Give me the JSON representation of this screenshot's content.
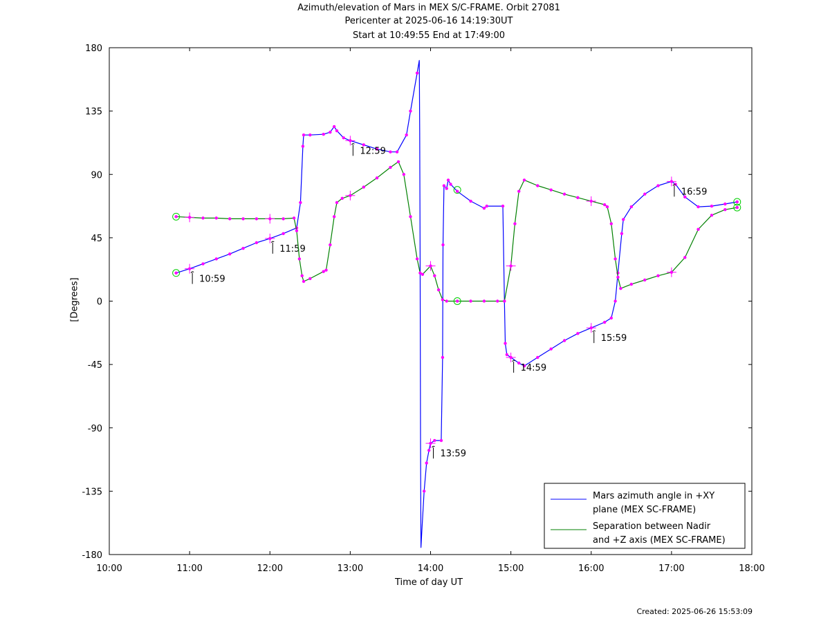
{
  "chart_data": {
    "type": "line",
    "title": [
      "Azimuth/elevation of Mars in MEX S/C-FRAME.  Orbit 27081",
      "Pericenter at 2025-06-16 14:19:30UT",
      "Start at 10:49:55 End at 17:49:00"
    ],
    "xlabel": "Time of day UT",
    "ylabel": "[Degrees]",
    "xlim": [
      10.0,
      18.0
    ],
    "ylim": [
      -180,
      180
    ],
    "xticks": [
      {
        "value": 10,
        "label": "10:00"
      },
      {
        "value": 11,
        "label": "11:00"
      },
      {
        "value": 12,
        "label": "12:00"
      },
      {
        "value": 13,
        "label": "13:00"
      },
      {
        "value": 14,
        "label": "14:00"
      },
      {
        "value": 15,
        "label": "15:00"
      },
      {
        "value": 16,
        "label": "16:00"
      },
      {
        "value": 17,
        "label": "17:00"
      },
      {
        "value": 18,
        "label": "18:00"
      }
    ],
    "yticks": [
      {
        "value": 180,
        "label": "180"
      },
      {
        "value": 135,
        "label": "135"
      },
      {
        "value": 90,
        "label": "90"
      },
      {
        "value": 45,
        "label": "45"
      },
      {
        "value": 0,
        "label": "0"
      },
      {
        "value": -45,
        "label": "-45"
      },
      {
        "value": -90,
        "label": "-90"
      },
      {
        "value": -135,
        "label": "-135"
      },
      {
        "value": -180,
        "label": "-180"
      }
    ],
    "legend_position": "bottom-right",
    "series": [
      {
        "name": "Mars azimuth angle in +XY plane (MEX SC-FRAME)",
        "legend_lines": [
          "Mars azimuth angle in +XY",
          "plane (MEX SC-FRAME)"
        ],
        "color": "#0000ff",
        "points": [
          [
            10.832,
            20
          ],
          [
            11.0,
            23
          ],
          [
            11.167,
            26.5
          ],
          [
            11.333,
            30
          ],
          [
            11.5,
            33.5
          ],
          [
            11.667,
            37.5
          ],
          [
            11.833,
            41.5
          ],
          [
            12.0,
            44.5
          ],
          [
            12.167,
            48
          ],
          [
            12.333,
            52
          ],
          [
            12.38,
            70
          ],
          [
            12.41,
            110
          ],
          [
            12.42,
            118
          ],
          [
            12.5,
            118
          ],
          [
            12.667,
            118.5
          ],
          [
            12.75,
            120
          ],
          [
            12.8,
            124
          ],
          [
            12.833,
            121
          ],
          [
            12.917,
            116
          ],
          [
            13.0,
            114
          ],
          [
            13.167,
            111
          ],
          [
            13.333,
            108
          ],
          [
            13.5,
            106
          ],
          [
            13.583,
            106
          ],
          [
            13.7,
            118
          ],
          [
            13.75,
            135
          ],
          [
            13.833,
            162
          ],
          [
            13.86,
            171
          ],
          [
            13.865,
            120
          ],
          [
            13.87,
            30
          ],
          [
            13.875,
            -100
          ],
          [
            13.88,
            -175
          ],
          [
            13.89,
            -165
          ],
          [
            13.92,
            -135
          ],
          [
            13.95,
            -115
          ],
          [
            13.98,
            -106
          ],
          [
            14.0,
            -101
          ],
          [
            14.05,
            -99
          ],
          [
            14.133,
            -99
          ],
          [
            14.15,
            -40
          ],
          [
            14.155,
            40
          ],
          [
            14.167,
            82
          ],
          [
            14.2,
            80
          ],
          [
            14.22,
            86
          ],
          [
            14.25,
            83
          ],
          [
            14.333,
            78
          ],
          [
            14.5,
            71
          ],
          [
            14.667,
            66
          ],
          [
            14.7,
            67.5
          ],
          [
            14.9,
            67.5
          ],
          [
            14.92,
            0
          ],
          [
            14.93,
            -30
          ],
          [
            14.95,
            -38
          ],
          [
            15.0,
            -40
          ],
          [
            15.1,
            -44
          ],
          [
            15.167,
            -46
          ],
          [
            15.333,
            -40
          ],
          [
            15.5,
            -34
          ],
          [
            15.667,
            -28
          ],
          [
            15.833,
            -23
          ],
          [
            16.0,
            -19
          ],
          [
            16.167,
            -15
          ],
          [
            16.25,
            -12
          ],
          [
            16.3,
            0
          ],
          [
            16.333,
            20
          ],
          [
            16.38,
            48
          ],
          [
            16.4,
            58
          ],
          [
            16.5,
            67
          ],
          [
            16.667,
            76
          ],
          [
            16.833,
            82
          ],
          [
            17.0,
            85
          ],
          [
            17.05,
            83
          ],
          [
            17.167,
            74
          ],
          [
            17.333,
            67
          ],
          [
            17.5,
            67.5
          ],
          [
            17.667,
            69
          ],
          [
            17.817,
            70.5
          ]
        ],
        "tick_markers": [
          [
            11.0,
            23
          ],
          [
            12.0,
            44.5
          ],
          [
            13.0,
            114
          ],
          [
            14.0,
            -101
          ],
          [
            15.0,
            -40
          ],
          [
            16.0,
            -19
          ],
          [
            17.0,
            85
          ]
        ],
        "time_labels": [
          {
            "x": 11.0,
            "y": 23,
            "label": "10:59"
          },
          {
            "x": 12.0,
            "y": 44.5,
            "label": "11:59"
          },
          {
            "x": 13.0,
            "y": 114,
            "label": "12:59"
          },
          {
            "x": 14.0,
            "y": -101,
            "label": "13:59"
          },
          {
            "x": 15.0,
            "y": -40,
            "label": "14:59"
          },
          {
            "x": 16.0,
            "y": -19,
            "label": "15:59"
          },
          {
            "x": 17.0,
            "y": 85,
            "label": "16:59"
          }
        ],
        "circle_markers": [
          [
            10.832,
            20
          ],
          [
            17.817,
            70.5
          ]
        ]
      },
      {
        "name": "Separation between Nadir and +Z axis (MEX SC-FRAME)",
        "legend_lines": [
          "Separation between Nadir",
          "and +Z axis (MEX SC-FRAME)"
        ],
        "color": "#008000",
        "points": [
          [
            10.832,
            60
          ],
          [
            11.0,
            59.5
          ],
          [
            11.167,
            59
          ],
          [
            11.333,
            59
          ],
          [
            11.5,
            58.5
          ],
          [
            11.667,
            58.5
          ],
          [
            11.833,
            58.5
          ],
          [
            12.0,
            58.5
          ],
          [
            12.167,
            58.5
          ],
          [
            12.3,
            59
          ],
          [
            12.333,
            50
          ],
          [
            12.367,
            30
          ],
          [
            12.4,
            18
          ],
          [
            12.42,
            14
          ],
          [
            12.5,
            16
          ],
          [
            12.667,
            21
          ],
          [
            12.7,
            22
          ],
          [
            12.75,
            40
          ],
          [
            12.8,
            60
          ],
          [
            12.833,
            70
          ],
          [
            12.9,
            73
          ],
          [
            13.0,
            75
          ],
          [
            13.167,
            81
          ],
          [
            13.333,
            87.5
          ],
          [
            13.5,
            95
          ],
          [
            13.6,
            99
          ],
          [
            13.667,
            90
          ],
          [
            13.75,
            60
          ],
          [
            13.833,
            30
          ],
          [
            13.87,
            20
          ],
          [
            13.9,
            19
          ],
          [
            14.0,
            25
          ],
          [
            14.05,
            18
          ],
          [
            14.1,
            8
          ],
          [
            14.15,
            1
          ],
          [
            14.2,
            0
          ],
          [
            14.333,
            0
          ],
          [
            14.5,
            0
          ],
          [
            14.667,
            0
          ],
          [
            14.833,
            0
          ],
          [
            14.92,
            0
          ],
          [
            15.0,
            25
          ],
          [
            15.05,
            55
          ],
          [
            15.1,
            78
          ],
          [
            15.167,
            86
          ],
          [
            15.333,
            82
          ],
          [
            15.5,
            79
          ],
          [
            15.667,
            76
          ],
          [
            15.833,
            73.5
          ],
          [
            16.0,
            71
          ],
          [
            16.167,
            68.5
          ],
          [
            16.2,
            67
          ],
          [
            16.25,
            55
          ],
          [
            16.3,
            30
          ],
          [
            16.333,
            17
          ],
          [
            16.367,
            9
          ],
          [
            16.5,
            12
          ],
          [
            16.667,
            15
          ],
          [
            16.833,
            18
          ],
          [
            17.0,
            20.5
          ],
          [
            17.167,
            31
          ],
          [
            17.333,
            51
          ],
          [
            17.5,
            61
          ],
          [
            17.667,
            65
          ],
          [
            17.817,
            66.5
          ]
        ],
        "tick_markers": [
          [
            11.0,
            59.5
          ],
          [
            12.0,
            58.5
          ],
          [
            13.0,
            75
          ],
          [
            14.0,
            25
          ],
          [
            15.0,
            25
          ],
          [
            16.0,
            71
          ],
          [
            17.0,
            20.5
          ]
        ],
        "circle_markers": [
          [
            10.832,
            60
          ],
          [
            14.333,
            0
          ],
          [
            14.333,
            79
          ],
          [
            17.817,
            66.5
          ]
        ]
      }
    ]
  },
  "footer": {
    "created": "Created: 2025-06-26 15:53:09"
  }
}
